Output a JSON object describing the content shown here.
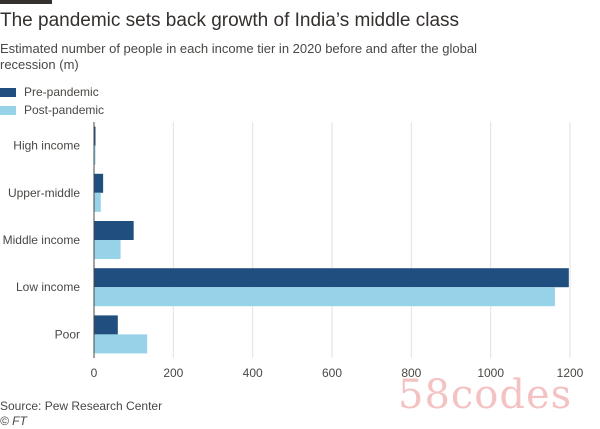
{
  "title": "The pandemic sets back growth of India’s middle class",
  "subtitle": "Estimated number of people in each income tier in 2020 before and after the global recession (m)",
  "legend": [
    {
      "label": "Pre-pandemic",
      "color": "#1f4e7f"
    },
    {
      "label": "Post-pandemic",
      "color": "#96d3e8"
    }
  ],
  "source": "Source: Pew Research Center",
  "credit": "© FT",
  "watermark": "58codes",
  "chart_data": {
    "type": "bar",
    "orientation": "horizontal",
    "categories": [
      "High income",
      "Upper-middle",
      "Middle income",
      "Low income",
      "Poor"
    ],
    "series": [
      {
        "name": "Pre-pandemic",
        "color": "#1f4e7f",
        "values": [
          2,
          23,
          100,
          1197,
          60
        ]
      },
      {
        "name": "Post-pandemic",
        "color": "#96d3e8",
        "values": [
          1,
          17,
          67,
          1162,
          134
        ]
      }
    ],
    "xlim": [
      0,
      1200
    ],
    "xticks": [
      0,
      200,
      400,
      600,
      800,
      1000,
      1200
    ],
    "grid": true,
    "legend_position": "top-left"
  }
}
